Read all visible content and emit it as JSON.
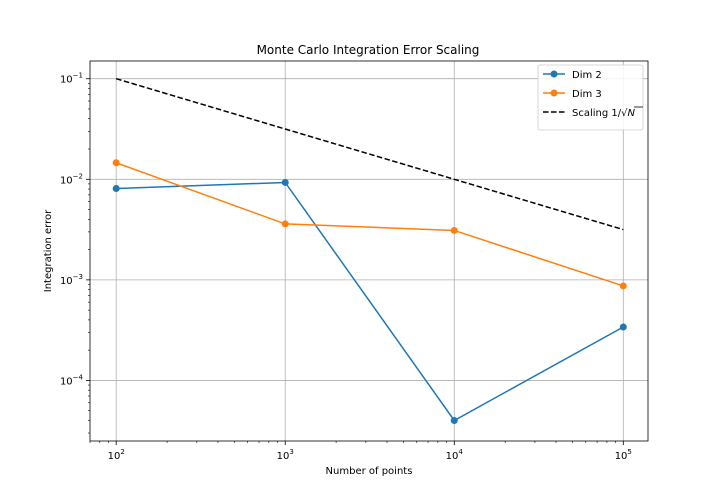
{
  "chart_data": {
    "type": "line",
    "title": "Monte Carlo Integration Error Scaling",
    "xlabel": "Number of points",
    "ylabel": "Integration error",
    "xscale": "log",
    "yscale": "log",
    "xlim": [
      70,
      140000
    ],
    "ylim": [
      2.5e-05,
      0.15
    ],
    "grid": true,
    "legend_position": "top-right",
    "x_ticks": [
      {
        "base": "10",
        "exp": "2",
        "value": 100
      },
      {
        "base": "10",
        "exp": "3",
        "value": 1000
      },
      {
        "base": "10",
        "exp": "4",
        "value": 10000
      },
      {
        "base": "10",
        "exp": "5",
        "value": 100000
      }
    ],
    "y_ticks": [
      {
        "base": "10",
        "exp": "−4",
        "value": 0.0001
      },
      {
        "base": "10",
        "exp": "−3",
        "value": 0.001
      },
      {
        "base": "10",
        "exp": "−2",
        "value": 0.01
      },
      {
        "base": "10",
        "exp": "−1",
        "value": 0.1
      }
    ],
    "series": [
      {
        "name": "Dim 2",
        "color": "#1f77b4",
        "style": "solid",
        "marker": "circle",
        "x": [
          100,
          1000,
          10000,
          100000
        ],
        "y": [
          0.0081,
          0.0093,
          4e-05,
          0.00034
        ]
      },
      {
        "name": "Dim 3",
        "color": "#ff7f0e",
        "style": "solid",
        "marker": "circle",
        "x": [
          100,
          1000,
          10000,
          100000
        ],
        "y": [
          0.0146,
          0.0036,
          0.0031,
          0.00087
        ]
      },
      {
        "name": "Scaling 1/√N",
        "name_prefix": "Scaling 1/",
        "name_sqrt": "N",
        "color": "#000000",
        "style": "dashed",
        "marker": "none",
        "x": [
          100,
          1000,
          10000,
          100000
        ],
        "y": [
          0.1,
          0.0316,
          0.01,
          0.00316
        ]
      }
    ]
  }
}
